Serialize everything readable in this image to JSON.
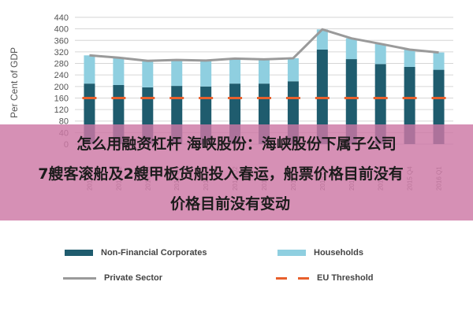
{
  "chart_data": {
    "type": "bar",
    "ylabel": "Per Cent of GDP",
    "ylim": [
      0,
      440
    ],
    "yticks": [
      0,
      40,
      80,
      120,
      160,
      200,
      240,
      280,
      320,
      360,
      400,
      440
    ],
    "categories": [
      "2013 Q1",
      "2013 Q2",
      "2013 Q3",
      "2013 Q4",
      "2014 Q1",
      "2014 Q2",
      "2014 Q3",
      "2014 Q4",
      "2015 Q1",
      "2015 Q2",
      "2015 Q3",
      "2015 Q4",
      "2016 Q1"
    ],
    "series": [
      {
        "name": "Non-Financial Corporates",
        "kind": "bar",
        "color": "#1f5c6e",
        "values": [
          210,
          205,
          197,
          202,
          200,
          210,
          210,
          218,
          328,
          295,
          278,
          268,
          258
        ]
      },
      {
        "name": "Households",
        "kind": "bar",
        "color": "#8fcfe0",
        "values": [
          98,
          95,
          92,
          90,
          90,
          87,
          84,
          80,
          70,
          72,
          70,
          60,
          60
        ]
      },
      {
        "name": "Private Sector",
        "kind": "line",
        "color": "#9a9a9a",
        "values": [
          308,
          300,
          289,
          292,
          290,
          297,
          294,
          298,
          398,
          367,
          348,
          328,
          318
        ]
      },
      {
        "name": "EU Threshold",
        "kind": "dashed",
        "color": "#e8602c",
        "values": [
          160,
          160,
          160,
          160,
          160,
          160,
          160,
          160,
          160,
          160,
          160,
          160,
          160
        ]
      }
    ],
    "legend_position": "bottom"
  },
  "overlay": {
    "line1": "怎么用融资杠杆 海峡股份：海峡股份下属子公司",
    "line2": "7艘客滚船及2艘甲板货船投入春运，船票价格目前没有",
    "line3": "价格目前没有变动"
  },
  "legend": [
    {
      "label": "Non-Financial Corporates",
      "color": "#1f5c6e",
      "style": "box"
    },
    {
      "label": "Households",
      "color": "#8fcfe0",
      "style": "box"
    },
    {
      "label": "Private Sector",
      "color": "#9a9a9a",
      "style": "line"
    },
    {
      "label": "EU Threshold",
      "color": "#e8602c",
      "style": "dash"
    }
  ]
}
